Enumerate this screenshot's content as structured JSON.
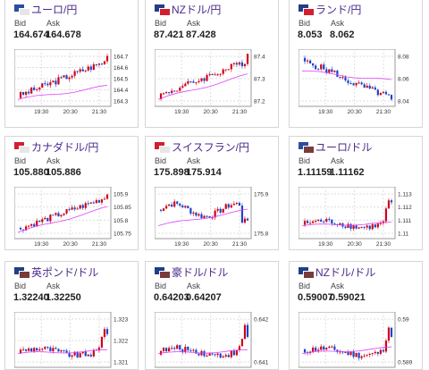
{
  "labels": {
    "bid": "Bid",
    "ask": "Ask"
  },
  "cards": [
    {
      "name": "ユーロ/円",
      "bid": "164.674",
      "ask": "164.678",
      "flag": [
        "#2b4da3",
        "#e6e6e6"
      ],
      "y_ticks": [
        "164.7",
        "164.6",
        "164.5",
        "164.4",
        "164.3"
      ],
      "x_ticks": [
        "19:30",
        "20:30",
        "21:30"
      ],
      "trend": "up",
      "close": 0.88,
      "ma_end": 0.35
    },
    {
      "name": "NZドル/円",
      "bid": "87.421",
      "ask": "87.428",
      "flag": [
        "#1f3f8a",
        "#d11f2f"
      ],
      "y_ticks": [
        "87.4",
        "87.3",
        "87.2"
      ],
      "x_ticks": [
        "19:30",
        "20:30",
        "21:30"
      ],
      "trend": "up",
      "close": 0.92,
      "ma_end": 0.55
    },
    {
      "name": "ランド/円",
      "bid": "8.053",
      "ask": "8.062",
      "flag": [
        "#1f3f8a",
        "#d11f2f"
      ],
      "y_ticks": [
        "8.08",
        "8.06",
        "8.04"
      ],
      "x_ticks": [
        "19:30",
        "20:30",
        "21:30"
      ],
      "trend": "down",
      "close": 0.12,
      "ma_end": 0.45
    },
    {
      "name": "カナダドル/円",
      "bid": "105.880",
      "ask": "105.886",
      "flag": [
        "#d11f2f",
        "#e6e6e6"
      ],
      "y_ticks": [
        "105.9",
        "105.85",
        "105.8",
        "105.75"
      ],
      "x_ticks": [
        "19:30",
        "20:30",
        "21:30"
      ],
      "trend": "up",
      "close": 0.85,
      "ma_end": 0.6
    },
    {
      "name": "スイスフラン/円",
      "bid": "175.898",
      "ask": "175.914",
      "flag": [
        "#d11f2f",
        "#e6e6e6"
      ],
      "y_ticks": [
        "175.9",
        "175.8"
      ],
      "x_ticks": [
        "19:30",
        "20:30",
        "21:30"
      ],
      "trend": "flat",
      "close": 0.35,
      "ma_end": 0.55
    },
    {
      "name": "ユーロ/ドル",
      "bid": "1.11159",
      "ask": "1.11162",
      "flag": [
        "#2b4da3",
        "#7a3b3b"
      ],
      "y_ticks": [
        "1.113",
        "1.112",
        "1.111",
        "1.11"
      ],
      "x_ticks": [
        "19:30",
        "20:30",
        "21:30"
      ],
      "trend": "upend",
      "close": 0.7,
      "ma_end": 0.3
    },
    {
      "name": "英ポンド/ドル",
      "bid": "1.32240",
      "ask": "1.32250",
      "flag": [
        "#1f3f8a",
        "#7a3b3b"
      ],
      "y_ticks": [
        "1.323",
        "1.322",
        "1.321"
      ],
      "x_ticks": [],
      "trend": "upend",
      "close": 0.6,
      "ma_end": 0.3
    },
    {
      "name": "豪ドル/ドル",
      "bid": "0.64203",
      "ask": "0.64207",
      "flag": [
        "#1f3f8a",
        "#7a3b3b"
      ],
      "y_ticks": [
        "0.642",
        "0.641"
      ],
      "x_ticks": [],
      "trend": "upend",
      "close": 0.55,
      "ma_end": 0.3
    },
    {
      "name": "NZドル/ドル",
      "bid": "0.59007",
      "ask": "0.59021",
      "flag": [
        "#1f3f8a",
        "#7a3b3b"
      ],
      "y_ticks": [
        "0.59",
        "0.589"
      ],
      "x_ticks": [],
      "trend": "upend",
      "close": 0.55,
      "ma_end": 0.35
    }
  ],
  "colors": {
    "up": "#d0021b",
    "down": "#1c44c8",
    "ma": "#e040fb",
    "grid": "#dddddd"
  }
}
